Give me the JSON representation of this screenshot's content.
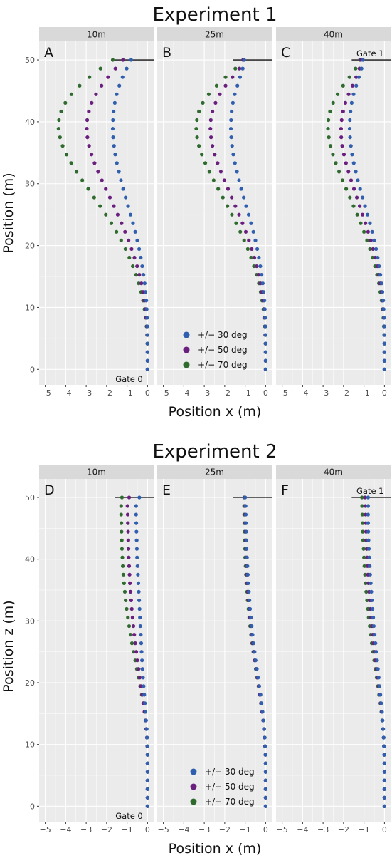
{
  "colors": {
    "s30": "#2f5fae",
    "s50": "#6a1f7e",
    "s70": "#2f6b2f",
    "panel_bg": "#ebebeb",
    "strip_bg": "#d9d9d9",
    "grid": "#ffffff"
  },
  "legend": [
    "+/− 30 deg",
    "+/− 50 deg",
    "+/− 70 deg"
  ],
  "chart_data": [
    {
      "type": "scatter",
      "title": "Experiment 1",
      "xlabel": "Position x (m)",
      "ylabel": "Position  (m)",
      "xlim": [
        -5.3,
        0.3
      ],
      "ylim": [
        -2.5,
        53
      ],
      "x_ticks": [
        "−5",
        "−4",
        "−3",
        "−2",
        "−1",
        "0"
      ],
      "y_ticks": [
        "0",
        "10",
        "20",
        "30",
        "40",
        "50"
      ],
      "legend_position": "inside panel B, bottom",
      "panels": [
        {
          "letter": "A",
          "strip": "10m",
          "gate_label": "Gate 0",
          "series": [
            {
              "name": "+/− 30 deg",
              "key": "s30",
              "x": [
                0.0,
                0.0,
                0.0,
                0.0,
                0.0,
                -0.01,
                -0.02,
                -0.04,
                -0.06,
                -0.1,
                -0.14,
                -0.2,
                -0.26,
                -0.33,
                -0.41,
                -0.5,
                -0.6,
                -0.71,
                -0.83,
                -0.95,
                -1.07,
                -1.19,
                -1.3,
                -1.4,
                -1.5,
                -1.58,
                -1.64,
                -1.68,
                -1.7,
                -1.69,
                -1.66,
                -1.6,
                -1.51,
                -1.38,
                -1.22,
                -1.02,
                -0.8
              ]
            },
            {
              "name": "+/− 50 deg",
              "key": "s50",
              "x": [
                0.0,
                0.0,
                0.0,
                0.0,
                -0.01,
                -0.03,
                -0.06,
                -0.1,
                -0.15,
                -0.22,
                -0.3,
                -0.4,
                -0.51,
                -0.64,
                -0.78,
                -0.93,
                -1.1,
                -1.27,
                -1.46,
                -1.65,
                -1.84,
                -2.04,
                -2.23,
                -2.42,
                -2.59,
                -2.74,
                -2.86,
                -2.94,
                -2.97,
                -2.95,
                -2.87,
                -2.73,
                -2.52,
                -2.25,
                -1.93,
                -1.57,
                -1.2
              ]
            },
            {
              "name": "+/− 70 deg",
              "key": "s70",
              "x": [
                0.0,
                0.0,
                0.0,
                -0.01,
                -0.02,
                -0.05,
                -0.09,
                -0.15,
                -0.22,
                -0.31,
                -0.43,
                -0.56,
                -0.72,
                -0.89,
                -1.08,
                -1.29,
                -1.52,
                -1.77,
                -2.04,
                -2.32,
                -2.61,
                -2.9,
                -3.19,
                -3.47,
                -3.73,
                -3.96,
                -4.15,
                -4.28,
                -4.35,
                -4.33,
                -4.22,
                -4.02,
                -3.72,
                -3.32,
                -2.84,
                -2.3,
                -1.7
              ]
            }
          ]
        },
        {
          "letter": "B",
          "strip": "25m",
          "gate_label": "",
          "series": [
            {
              "name": "+/− 30 deg",
              "key": "s30",
              "x": [
                0.0,
                0.0,
                0.0,
                0.0,
                0.0,
                -0.01,
                -0.02,
                -0.04,
                -0.06,
                -0.1,
                -0.14,
                -0.2,
                -0.26,
                -0.33,
                -0.41,
                -0.5,
                -0.6,
                -0.71,
                -0.83,
                -0.95,
                -1.07,
                -1.19,
                -1.3,
                -1.4,
                -1.5,
                -1.58,
                -1.64,
                -1.68,
                -1.7,
                -1.69,
                -1.66,
                -1.6,
                -1.51,
                -1.38,
                -1.25,
                -1.12,
                -1.05
              ]
            },
            {
              "name": "+/− 50 deg",
              "key": "s50",
              "x": [
                0.0,
                0.0,
                0.0,
                0.0,
                -0.01,
                -0.02,
                -0.04,
                -0.08,
                -0.12,
                -0.18,
                -0.25,
                -0.34,
                -0.44,
                -0.55,
                -0.68,
                -0.82,
                -0.97,
                -1.13,
                -1.3,
                -1.48,
                -1.66,
                -1.84,
                -2.02,
                -2.19,
                -2.35,
                -2.49,
                -2.6,
                -2.67,
                -2.7,
                -2.68,
                -2.6,
                -2.45,
                -2.24,
                -1.96,
                -1.62,
                -1.28,
                -1.1
              ]
            },
            {
              "name": "+/− 70 deg",
              "key": "s70",
              "x": [
                0.0,
                0.0,
                0.0,
                -0.01,
                -0.02,
                -0.04,
                -0.07,
                -0.11,
                -0.17,
                -0.24,
                -0.33,
                -0.44,
                -0.57,
                -0.71,
                -0.87,
                -1.05,
                -1.24,
                -1.44,
                -1.65,
                -1.87,
                -2.09,
                -2.32,
                -2.54,
                -2.75,
                -2.95,
                -3.12,
                -3.26,
                -3.35,
                -3.39,
                -3.36,
                -3.26,
                -3.07,
                -2.78,
                -2.4,
                -1.96,
                -1.48,
                -1.1
              ]
            }
          ]
        },
        {
          "letter": "C",
          "strip": "40m",
          "gate_label": "Gate 1",
          "series": [
            {
              "name": "+/− 30 deg",
              "key": "s30",
              "x": [
                0.0,
                0.0,
                0.0,
                0.0,
                0.0,
                -0.01,
                -0.02,
                -0.04,
                -0.06,
                -0.1,
                -0.14,
                -0.2,
                -0.26,
                -0.33,
                -0.41,
                -0.5,
                -0.6,
                -0.71,
                -0.83,
                -0.95,
                -1.07,
                -1.19,
                -1.3,
                -1.4,
                -1.5,
                -1.58,
                -1.64,
                -1.68,
                -1.7,
                -1.69,
                -1.66,
                -1.6,
                -1.51,
                -1.38,
                -1.25,
                -1.12,
                -1.05
              ]
            },
            {
              "name": "+/− 50 deg",
              "key": "s50",
              "x": [
                0.0,
                0.0,
                0.0,
                0.0,
                0.0,
                -0.01,
                -0.03,
                -0.06,
                -0.09,
                -0.14,
                -0.2,
                -0.27,
                -0.35,
                -0.45,
                -0.56,
                -0.67,
                -0.8,
                -0.93,
                -1.07,
                -1.21,
                -1.35,
                -1.49,
                -1.63,
                -1.76,
                -1.88,
                -1.98,
                -2.06,
                -2.11,
                -2.12,
                -2.09,
                -2.02,
                -1.91,
                -1.75,
                -1.56,
                -1.38,
                -1.22,
                -1.15
              ]
            },
            {
              "name": "+/− 70 deg",
              "key": "s70",
              "x": [
                0.0,
                0.0,
                0.0,
                0.0,
                -0.01,
                -0.03,
                -0.05,
                -0.09,
                -0.14,
                -0.2,
                -0.27,
                -0.36,
                -0.46,
                -0.58,
                -0.71,
                -0.85,
                -1.0,
                -1.16,
                -1.33,
                -1.51,
                -1.69,
                -1.87,
                -2.05,
                -2.22,
                -2.38,
                -2.52,
                -2.64,
                -2.72,
                -2.76,
                -2.74,
                -2.66,
                -2.51,
                -2.29,
                -2.02,
                -1.71,
                -1.41,
                -1.2
              ]
            }
          ]
        }
      ]
    },
    {
      "type": "scatter",
      "title": "Experiment 2",
      "xlabel": "Position x (m)",
      "ylabel": "Position z (m)",
      "xlim": [
        -5.3,
        0.3
      ],
      "ylim": [
        -2.5,
        53
      ],
      "x_ticks": [
        "−5",
        "−4",
        "−3",
        "−2",
        "−1",
        "0"
      ],
      "y_ticks": [
        "0",
        "10",
        "20",
        "30",
        "40",
        "50"
      ],
      "legend_position": "inside panel E, bottom",
      "panels": [
        {
          "letter": "D",
          "strip": "10m",
          "gate_label": "Gate 0",
          "series": [
            {
              "name": "+/− 30 deg",
              "key": "s30",
              "x": [
                0.0,
                0.0,
                0.0,
                0.0,
                0.0,
                0.0,
                0.0,
                0.0,
                -0.02,
                -0.04,
                -0.07,
                -0.1,
                -0.13,
                -0.16,
                -0.19,
                -0.22,
                -0.25,
                -0.27,
                -0.29,
                -0.31,
                -0.33,
                -0.35,
                -0.37,
                -0.39,
                -0.41,
                -0.43,
                -0.45,
                -0.47,
                -0.49,
                -0.51,
                -0.52,
                -0.53,
                -0.54,
                -0.55,
                -0.56,
                -0.56,
                -0.4
              ]
            },
            {
              "name": "+/− 50 deg",
              "key": "s50",
              "x": [
                0.0,
                0.0,
                0.0,
                0.0,
                0.0,
                0.0,
                0.0,
                -0.01,
                -0.03,
                -0.06,
                -0.1,
                -0.15,
                -0.2,
                -0.26,
                -0.32,
                -0.38,
                -0.44,
                -0.5,
                -0.55,
                -0.6,
                -0.65,
                -0.69,
                -0.73,
                -0.77,
                -0.8,
                -0.83,
                -0.86,
                -0.88,
                -0.9,
                -0.92,
                -0.93,
                -0.94,
                -0.95,
                -0.96,
                -0.97,
                -0.98,
                -0.9
              ]
            },
            {
              "name": "+/− 70 deg",
              "key": "s70",
              "x": [
                0.0,
                0.0,
                0.0,
                0.0,
                0.0,
                0.0,
                0.0,
                -0.01,
                -0.03,
                -0.06,
                -0.1,
                -0.15,
                -0.21,
                -0.28,
                -0.36,
                -0.44,
                -0.52,
                -0.6,
                -0.68,
                -0.76,
                -0.83,
                -0.9,
                -0.96,
                -1.02,
                -1.07,
                -1.11,
                -1.15,
                -1.18,
                -1.21,
                -1.23,
                -1.25,
                -1.26,
                -1.27,
                -1.28,
                -1.29,
                -1.29,
                -1.25
              ]
            }
          ]
        },
        {
          "letter": "E",
          "strip": "25m",
          "gate_label": "",
          "series": [
            {
              "name": "+/− 30 deg",
              "key": "s30",
              "x": [
                0.0,
                0.0,
                0.0,
                0.0,
                0.0,
                0.0,
                -0.01,
                -0.02,
                -0.04,
                -0.07,
                -0.11,
                -0.15,
                -0.2,
                -0.25,
                -0.31,
                -0.37,
                -0.43,
                -0.49,
                -0.54,
                -0.59,
                -0.64,
                -0.68,
                -0.72,
                -0.76,
                -0.79,
                -0.82,
                -0.85,
                -0.87,
                -0.89,
                -0.91,
                -0.93,
                -0.94,
                -0.95,
                -0.96,
                -0.97,
                -0.98,
                -1.0
              ]
            },
            {
              "name": "+/− 50 deg",
              "key": "s50",
              "x": [
                0.0,
                0.0,
                0.0,
                0.0,
                0.0,
                0.0,
                -0.01,
                -0.03,
                -0.05,
                -0.08,
                -0.12,
                -0.17,
                -0.22,
                -0.28,
                -0.34,
                -0.4,
                -0.46,
                -0.52,
                -0.58,
                -0.63,
                -0.68,
                -0.72,
                -0.76,
                -0.8,
                -0.83,
                -0.86,
                -0.89,
                -0.91,
                -0.93,
                -0.95,
                -0.96,
                -0.97,
                -0.98,
                -0.99,
                -1.0,
                -1.0,
                -1.02
              ]
            },
            {
              "name": "+/− 70 deg",
              "key": "s70",
              "x": [
                0.0,
                0.0,
                0.0,
                0.0,
                0.0,
                0.0,
                -0.01,
                -0.03,
                -0.05,
                -0.08,
                -0.12,
                -0.17,
                -0.23,
                -0.29,
                -0.35,
                -0.42,
                -0.48,
                -0.54,
                -0.6,
                -0.66,
                -0.71,
                -0.76,
                -0.8,
                -0.84,
                -0.88,
                -0.91,
                -0.94,
                -0.96,
                -0.98,
                -1.0,
                -1.01,
                -1.02,
                -1.03,
                -1.04,
                -1.05,
                -1.05,
                -1.05
              ]
            }
          ]
        },
        {
          "letter": "F",
          "strip": "40m",
          "gate_label": "Gate 1",
          "series": [
            {
              "name": "+/− 30 deg",
              "key": "s30",
              "x": [
                0.0,
                0.0,
                0.0,
                0.0,
                0.0,
                0.0,
                -0.01,
                -0.02,
                -0.04,
                -0.06,
                -0.09,
                -0.12,
                -0.16,
                -0.2,
                -0.24,
                -0.28,
                -0.32,
                -0.36,
                -0.4,
                -0.44,
                -0.48,
                -0.52,
                -0.55,
                -0.58,
                -0.61,
                -0.64,
                -0.67,
                -0.7,
                -0.72,
                -0.74,
                -0.76,
                -0.78,
                -0.79,
                -0.8,
                -0.8,
                -0.8,
                -0.8
              ]
            },
            {
              "name": "+/− 50 deg",
              "key": "s50",
              "x": [
                0.0,
                0.0,
                0.0,
                0.0,
                0.0,
                0.0,
                -0.01,
                -0.02,
                -0.04,
                -0.07,
                -0.1,
                -0.14,
                -0.18,
                -0.23,
                -0.28,
                -0.33,
                -0.38,
                -0.43,
                -0.48,
                -0.53,
                -0.57,
                -0.61,
                -0.65,
                -0.69,
                -0.72,
                -0.75,
                -0.78,
                -0.81,
                -0.83,
                -0.85,
                -0.87,
                -0.89,
                -0.9,
                -0.91,
                -0.92,
                -0.93,
                -0.95
              ]
            },
            {
              "name": "+/− 70 deg",
              "key": "s70",
              "x": [
                0.0,
                0.0,
                0.0,
                0.0,
                0.0,
                0.0,
                -0.01,
                -0.02,
                -0.04,
                -0.07,
                -0.11,
                -0.15,
                -0.2,
                -0.26,
                -0.32,
                -0.38,
                -0.44,
                -0.5,
                -0.56,
                -0.62,
                -0.67,
                -0.72,
                -0.77,
                -0.81,
                -0.85,
                -0.89,
                -0.92,
                -0.95,
                -0.98,
                -1.0,
                -1.02,
                -1.04,
                -1.06,
                -1.07,
                -1.08,
                -1.09,
                -1.1
              ]
            }
          ]
        }
      ]
    }
  ]
}
